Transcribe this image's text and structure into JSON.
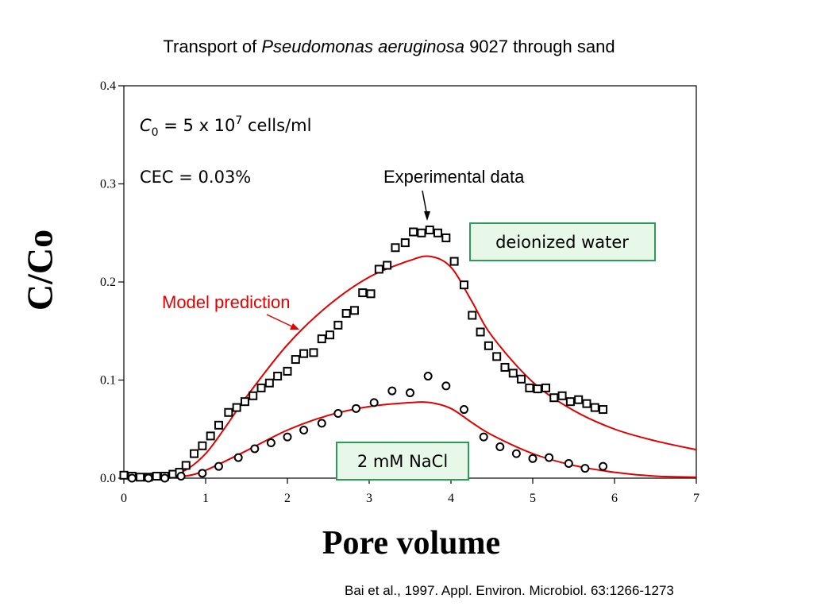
{
  "title": {
    "prefix": "Transport of ",
    "organism": "Pseudomonas aeruginosa",
    "suffix": " 9027 through sand"
  },
  "citation": "Bai et al., 1997.  Appl. Environ. Microbiol.  63:1266-1273",
  "annotations": {
    "c0_text": "C",
    "c0_sub": "0",
    "c0_rest": " = 5 x 10",
    "c0_sup": "7",
    "c0_units": " cells/ml",
    "cec": "CEC = 0.03%",
    "experimental": "Experimental data",
    "model": "Model prediction",
    "box_di": "deionized water",
    "box_nacl": "2 mM NaCl"
  },
  "colors": {
    "model_line": "#e00000",
    "box_fill": "#e8f8e8",
    "box_border": "#2e9a5a",
    "axis": "#000000"
  },
  "chart_data": {
    "type": "scatter",
    "xlabel": "Pore volume",
    "ylabel": "C/Co",
    "xlim": [
      0,
      7
    ],
    "ylim": [
      0,
      0.4
    ],
    "xticks": [
      "0",
      "1",
      "2",
      "3",
      "4",
      "5",
      "6",
      "7"
    ],
    "yticks": [
      "0.0",
      "0.1",
      "0.2",
      "0.3",
      "0.4"
    ],
    "grid": false,
    "series": [
      {
        "name": "deionized water",
        "marker": "square",
        "x": [
          0.0,
          0.1,
          0.2,
          0.3,
          0.4,
          0.5,
          0.6,
          0.68,
          0.76,
          0.86,
          0.96,
          1.06,
          1.16,
          1.28,
          1.38,
          1.48,
          1.58,
          1.68,
          1.78,
          1.88,
          2.0,
          2.1,
          2.2,
          2.32,
          2.42,
          2.52,
          2.62,
          2.72,
          2.82,
          2.92,
          3.02,
          3.12,
          3.22,
          3.32,
          3.44,
          3.54,
          3.64,
          3.74,
          3.84,
          3.94,
          4.04,
          4.16,
          4.26,
          4.36,
          4.46,
          4.56,
          4.66,
          4.76,
          4.86,
          4.96,
          5.06,
          5.16,
          5.26,
          5.36,
          5.46,
          5.56,
          5.66,
          5.76,
          5.86
        ],
        "y": [
          0.003,
          0.002,
          0.001,
          0.001,
          0.002,
          0.002,
          0.004,
          0.006,
          0.013,
          0.025,
          0.033,
          0.043,
          0.054,
          0.067,
          0.072,
          0.078,
          0.084,
          0.092,
          0.097,
          0.104,
          0.109,
          0.121,
          0.127,
          0.128,
          0.142,
          0.146,
          0.156,
          0.168,
          0.171,
          0.189,
          0.188,
          0.213,
          0.217,
          0.235,
          0.24,
          0.251,
          0.25,
          0.253,
          0.25,
          0.245,
          0.221,
          0.197,
          0.166,
          0.149,
          0.135,
          0.124,
          0.113,
          0.107,
          0.101,
          0.092,
          0.091,
          0.092,
          0.082,
          0.084,
          0.078,
          0.08,
          0.076,
          0.072,
          0.07
        ],
        "model": {
          "x": [
            0.1,
            0.5,
            0.75,
            1.0,
            1.25,
            1.5,
            2.0,
            2.5,
            3.0,
            3.5,
            3.75,
            4.0,
            4.25,
            4.5,
            5.0,
            5.5,
            6.0,
            6.5,
            7.0
          ],
          "y": [
            0.0,
            0.002,
            0.008,
            0.025,
            0.053,
            0.083,
            0.136,
            0.176,
            0.205,
            0.222,
            0.226,
            0.215,
            0.181,
            0.145,
            0.098,
            0.069,
            0.05,
            0.038,
            0.029
          ]
        }
      },
      {
        "name": "2 mM NaCl",
        "marker": "circle",
        "x": [
          0.1,
          0.3,
          0.5,
          0.7,
          0.96,
          1.16,
          1.4,
          1.6,
          1.8,
          2.0,
          2.2,
          2.42,
          2.62,
          2.84,
          3.06,
          3.28,
          3.5,
          3.72,
          3.94,
          4.16,
          4.4,
          4.6,
          4.8,
          5.0,
          5.2,
          5.44,
          5.64,
          5.86
        ],
        "y": [
          0.0,
          0.0,
          0.0,
          0.002,
          0.005,
          0.012,
          0.021,
          0.03,
          0.036,
          0.042,
          0.049,
          0.056,
          0.066,
          0.071,
          0.077,
          0.089,
          0.087,
          0.104,
          0.094,
          0.07,
          0.042,
          0.032,
          0.025,
          0.02,
          0.021,
          0.015,
          0.01,
          0.012
        ],
        "model": {
          "x": [
            0.1,
            0.5,
            0.75,
            1.0,
            1.5,
            2.0,
            2.5,
            3.0,
            3.5,
            3.75,
            4.0,
            4.25,
            4.5,
            5.0,
            5.5,
            6.0,
            6.5,
            7.0
          ],
          "y": [
            0.0,
            0.0,
            0.002,
            0.008,
            0.028,
            0.049,
            0.064,
            0.073,
            0.077,
            0.077,
            0.071,
            0.057,
            0.044,
            0.025,
            0.013,
            0.006,
            0.002,
            0.001
          ]
        }
      }
    ]
  }
}
